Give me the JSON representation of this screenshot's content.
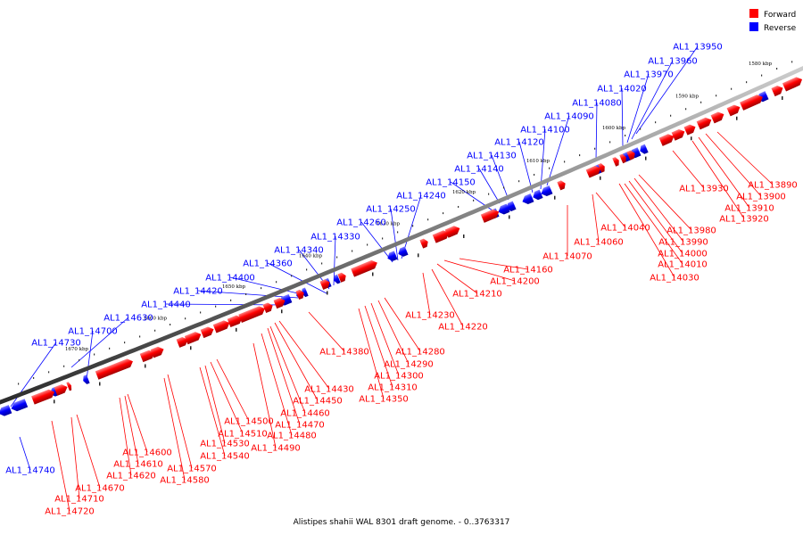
{
  "legend": {
    "forward_label": "Forward",
    "reverse_label": "Reverse",
    "forward_color": "#ff0000",
    "reverse_color": "#0000ff"
  },
  "caption": "Alistipes shahii WAL 8301 draft genome. - 0..3763317",
  "ticks": [
    "1580 kbp",
    "1590 kbp",
    "1600 kbp",
    "1610 kbp",
    "1620 kbp",
    "1630 kbp",
    "1640 kbp",
    "1650 kbp",
    "1660 kbp",
    "1670 kbp"
  ],
  "reverse_genes": [
    "AL1_13950",
    "AL1_13960",
    "AL1_13970",
    "AL1_14020",
    "AL1_14080",
    "AL1_14090",
    "AL1_14100",
    "AL1_14120",
    "AL1_14130",
    "AL1_14140",
    "AL1_14150",
    "AL1_14240",
    "AL1_14250",
    "AL1_14260",
    "AL1_14330",
    "AL1_14340",
    "AL1_14360",
    "AL1_14400",
    "AL1_14420",
    "AL1_14440",
    "AL1_14630",
    "AL1_14700",
    "AL1_14730",
    "AL1_14740"
  ],
  "forward_genes": [
    "AL1_13890",
    "AL1_13900",
    "AL1_13910",
    "AL1_13920",
    "AL1_13930",
    "AL1_13980",
    "AL1_13990",
    "AL1_14000",
    "AL1_14010",
    "AL1_14030",
    "AL1_14040",
    "AL1_14060",
    "AL1_14070",
    "AL1_14160",
    "AL1_14200",
    "AL1_14210",
    "AL1_14220",
    "AL1_14230",
    "AL1_14280",
    "AL1_14290",
    "AL1_14300",
    "AL1_14310",
    "AL1_14350",
    "AL1_14380",
    "AL1_14430",
    "AL1_14450",
    "AL1_14460",
    "AL1_14470",
    "AL1_14480",
    "AL1_14490",
    "AL1_14500",
    "AL1_14510",
    "AL1_14530",
    "AL1_14540",
    "AL1_14570",
    "AL1_14580",
    "AL1_14600",
    "AL1_14610",
    "AL1_14620",
    "AL1_14670",
    "AL1_14710",
    "AL1_14720"
  ]
}
